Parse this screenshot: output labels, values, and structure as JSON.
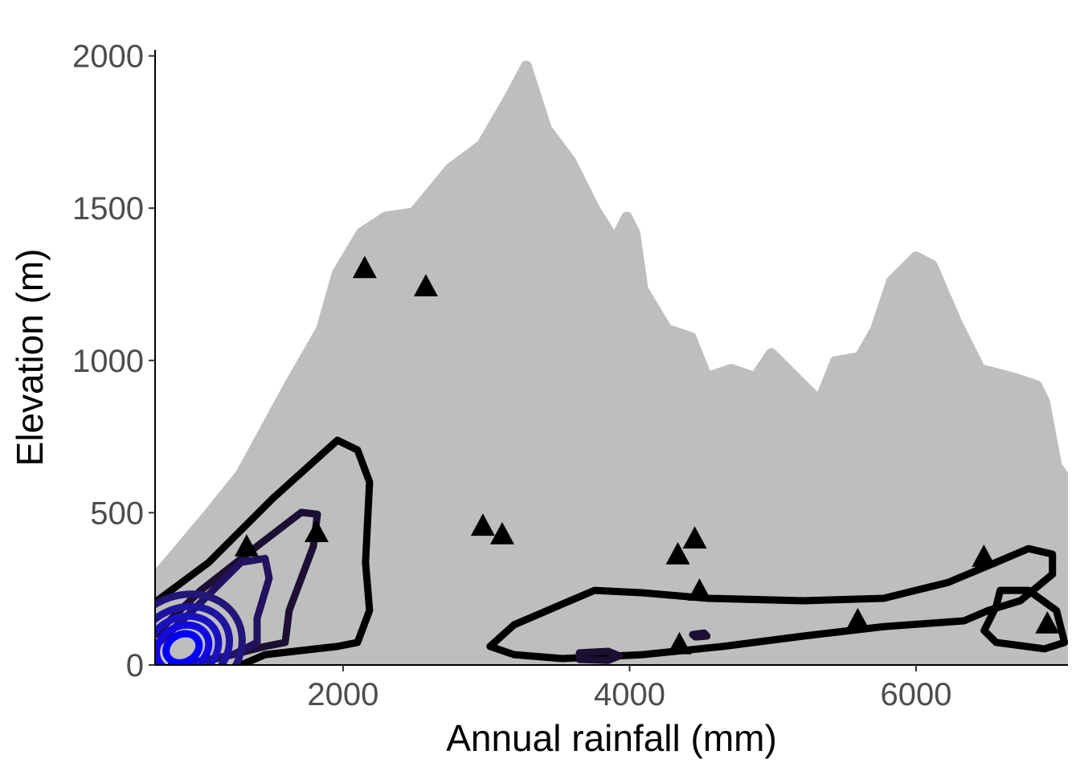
{
  "chart_data": {
    "type": "scatter",
    "title": "",
    "xlabel": "Annual rainfall (mm)",
    "ylabel": "Elevation (m)",
    "xlim": [
      688,
      7060
    ],
    "ylim": [
      0,
      2020
    ],
    "xticks": [
      2000,
      4000,
      6000
    ],
    "xtick_labels": [
      "2000",
      "4000",
      "6000"
    ],
    "yticks": [
      0,
      500,
      1000,
      1500,
      2000
    ],
    "ytick_labels": [
      "0",
      "500",
      "1000",
      "1500",
      "2000"
    ],
    "grid": false,
    "colors": {
      "cloud": "#bebebe",
      "triangles": "#000000",
      "contour_low": "#000000",
      "contour_high": "#0000ff"
    },
    "background_points_envelope": [
      [
        688,
        285
      ],
      [
        1063,
        495
      ],
      [
        1288,
        627
      ],
      [
        1624,
        917
      ],
      [
        1849,
        1101
      ],
      [
        1961,
        1286
      ],
      [
        2129,
        1418
      ],
      [
        2297,
        1470
      ],
      [
        2494,
        1484
      ],
      [
        2746,
        1628
      ],
      [
        2970,
        1707
      ],
      [
        3166,
        1866
      ],
      [
        3279,
        1966
      ],
      [
        3419,
        1760
      ],
      [
        3587,
        1655
      ],
      [
        3755,
        1497
      ],
      [
        3896,
        1391
      ],
      [
        3980,
        1470
      ],
      [
        4036,
        1418
      ],
      [
        4092,
        1233
      ],
      [
        4260,
        1101
      ],
      [
        4428,
        1075
      ],
      [
        4540,
        943
      ],
      [
        4709,
        970
      ],
      [
        4877,
        943
      ],
      [
        4989,
        1022
      ],
      [
        5157,
        943
      ],
      [
        5326,
        864
      ],
      [
        5438,
        996
      ],
      [
        5606,
        1009
      ],
      [
        5718,
        1101
      ],
      [
        5830,
        1260
      ],
      [
        6000,
        1339
      ],
      [
        6111,
        1312
      ],
      [
        6279,
        1128
      ],
      [
        6447,
        970
      ],
      [
        6671,
        943
      ],
      [
        6840,
        917
      ],
      [
        6896,
        864
      ],
      [
        6980,
        653
      ],
      [
        7058,
        601
      ],
      [
        7058,
        0
      ],
      [
        688,
        0
      ]
    ],
    "triangles": [
      [
        2151,
        1304
      ],
      [
        2578,
        1244
      ],
      [
        1327,
        390
      ],
      [
        1815,
        437
      ],
      [
        2976,
        458
      ],
      [
        3111,
        430
      ],
      [
        4337,
        364
      ],
      [
        4455,
        416
      ],
      [
        4488,
        245
      ],
      [
        4348,
        69
      ],
      [
        5593,
        148
      ],
      [
        6473,
        356
      ],
      [
        6916,
        137
      ]
    ],
    "contours": [
      {
        "level": 1,
        "color": "#000000",
        "points": [
          [
            688,
            206
          ],
          [
            1063,
            337
          ],
          [
            1512,
            548
          ],
          [
            1961,
            738
          ],
          [
            2101,
            706
          ],
          [
            2185,
            601
          ],
          [
            2157,
            337
          ],
          [
            2185,
            179
          ],
          [
            2101,
            74
          ],
          [
            1961,
            61
          ],
          [
            1456,
            34
          ],
          [
            1288,
            0
          ]
        ],
        "closed": false
      },
      {
        "level": 1,
        "color": "#000000",
        "points": [
          [
            3026,
            61
          ],
          [
            3194,
            132
          ],
          [
            3531,
            200
          ],
          [
            3755,
            245
          ],
          [
            4092,
            237
          ],
          [
            4540,
            219
          ],
          [
            5213,
            211
          ],
          [
            5774,
            219
          ],
          [
            6223,
            271
          ],
          [
            6559,
            337
          ],
          [
            6784,
            382
          ],
          [
            6952,
            364
          ],
          [
            6952,
            298
          ],
          [
            6728,
            211
          ],
          [
            6503,
            179
          ],
          [
            6335,
            145
          ],
          [
            5774,
            126
          ],
          [
            5213,
            95
          ],
          [
            4653,
            61
          ],
          [
            4092,
            34
          ],
          [
            3531,
            21
          ],
          [
            3194,
            34
          ]
        ],
        "closed": true
      },
      {
        "level": 1,
        "color": "#000000",
        "points": [
          [
            6587,
            245
          ],
          [
            6784,
            245
          ],
          [
            6980,
            179
          ],
          [
            7036,
            74
          ],
          [
            6896,
            53
          ],
          [
            6559,
            74
          ],
          [
            6475,
            113
          ],
          [
            6559,
            192
          ]
        ],
        "closed": true
      },
      {
        "level": 2,
        "color": "#1c0f33",
        "points": [
          [
            688,
            100
          ],
          [
            1007,
            245
          ],
          [
            1400,
            390
          ],
          [
            1708,
            501
          ],
          [
            1821,
            495
          ],
          [
            1793,
            390
          ],
          [
            1624,
            179
          ],
          [
            1596,
            74
          ],
          [
            1456,
            61
          ],
          [
            1120,
            21
          ],
          [
            800,
            0
          ]
        ],
        "closed": false
      },
      {
        "level": 2,
        "color": "#1c0f33",
        "points": [
          [
            3650,
            40
          ],
          [
            3850,
            45
          ],
          [
            3930,
            30
          ],
          [
            3850,
            15
          ],
          [
            3650,
            18
          ]
        ],
        "closed": true
      },
      {
        "level": 2,
        "color": "#1c0f33",
        "points": [
          [
            4440,
            100
          ],
          [
            4520,
            105
          ],
          [
            4540,
            95
          ],
          [
            4460,
            92
          ]
        ],
        "closed": true
      },
      {
        "level": 3,
        "color": "#221260",
        "points": [
          [
            688,
            61
          ],
          [
            951,
            179
          ],
          [
            1288,
            337
          ],
          [
            1456,
            350
          ],
          [
            1484,
            285
          ],
          [
            1400,
            153
          ],
          [
            1400,
            74
          ],
          [
            1232,
            34
          ],
          [
            951,
            8
          ]
        ],
        "closed": false
      }
    ],
    "inner_contours": [
      {
        "center": [
          880,
          55
        ],
        "rx": 430,
        "ry": 170,
        "color": "#22167a"
      },
      {
        "center": [
          880,
          55
        ],
        "rx": 340,
        "ry": 130,
        "color": "#1d14a0"
      },
      {
        "center": [
          880,
          55
        ],
        "rx": 260,
        "ry": 100,
        "color": "#1a10c0"
      },
      {
        "center": [
          880,
          55
        ],
        "rx": 190,
        "ry": 72,
        "color": "#1208e0"
      },
      {
        "center": [
          880,
          55
        ],
        "rx": 120,
        "ry": 45,
        "color": "#0000ff"
      }
    ]
  }
}
